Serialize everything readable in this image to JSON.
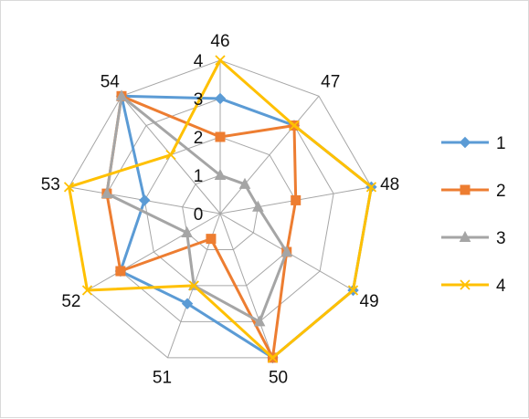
{
  "chart_data": {
    "type": "radar",
    "categories": [
      "46",
      "47",
      "48",
      "49",
      "50",
      "51",
      "52",
      "53",
      "54"
    ],
    "rmin": 0,
    "rmax": 4,
    "ticks": [
      0,
      1,
      2,
      3,
      4
    ],
    "grid": true,
    "legend_position": "right",
    "series": [
      {
        "name": "1",
        "color": "#5B9BD5",
        "marker": "diamond",
        "values": [
          3,
          3,
          4,
          4,
          4,
          2.5,
          3,
          2,
          4
        ]
      },
      {
        "name": "2",
        "color": "#ED7D31",
        "marker": "square",
        "values": [
          2,
          3,
          2,
          2,
          4,
          0.7,
          3,
          3,
          4
        ]
      },
      {
        "name": "3",
        "color": "#A5A5A5",
        "marker": "triangle",
        "values": [
          1,
          1,
          1,
          2,
          3,
          2,
          1,
          3,
          4
        ]
      },
      {
        "name": "4",
        "color": "#FFC000",
        "marker": "x",
        "values": [
          4,
          3,
          4,
          4,
          4,
          2,
          4,
          4,
          2
        ]
      }
    ]
  }
}
